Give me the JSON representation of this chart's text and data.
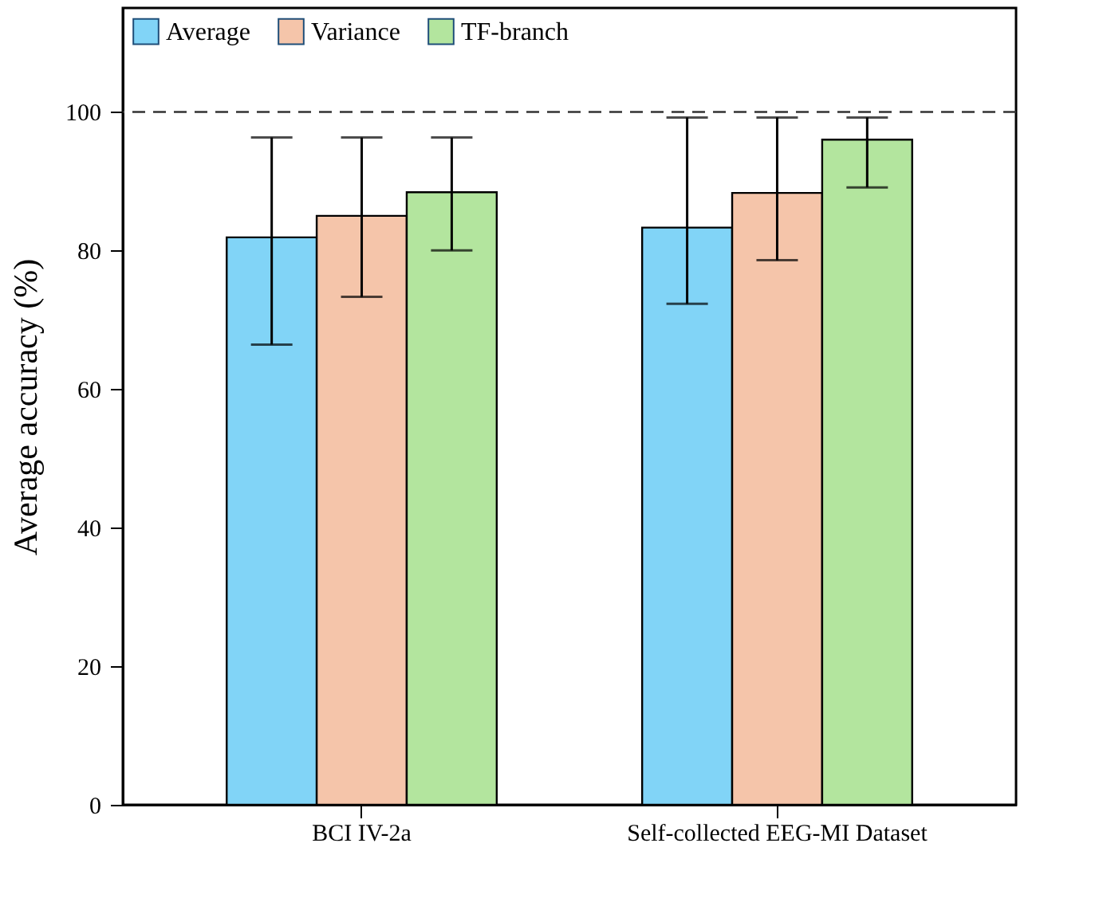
{
  "chart_data": {
    "type": "bar",
    "ylabel": "Average accuracy (%)",
    "categories": [
      "BCI IV-2a",
      "Self-collected EEG-MI Dataset"
    ],
    "series": [
      {
        "name": "Average",
        "color": "#81d4f7",
        "values": [
          81.9,
          83.3
        ],
        "errors": [
          [
            66.4,
            96.3
          ],
          [
            72.3,
            99.2
          ]
        ]
      },
      {
        "name": "Variance",
        "color": "#f5c5aa",
        "values": [
          85.0,
          88.3
        ],
        "errors": [
          [
            73.3,
            96.3
          ],
          [
            78.6,
            99.2
          ]
        ]
      },
      {
        "name": "TF-branch",
        "color": "#b3e59e",
        "values": [
          88.4,
          96.0
        ],
        "errors": [
          [
            80.0,
            96.3
          ],
          [
            89.1,
            99.2
          ]
        ]
      }
    ],
    "ylim": [
      0,
      115
    ],
    "yticks": [
      0,
      20,
      40,
      60,
      80,
      100
    ],
    "ref_lines": [
      {
        "axis": "y",
        "value": 100,
        "line_style": "dashed"
      }
    ],
    "legend": "top left",
    "grid": false
  }
}
